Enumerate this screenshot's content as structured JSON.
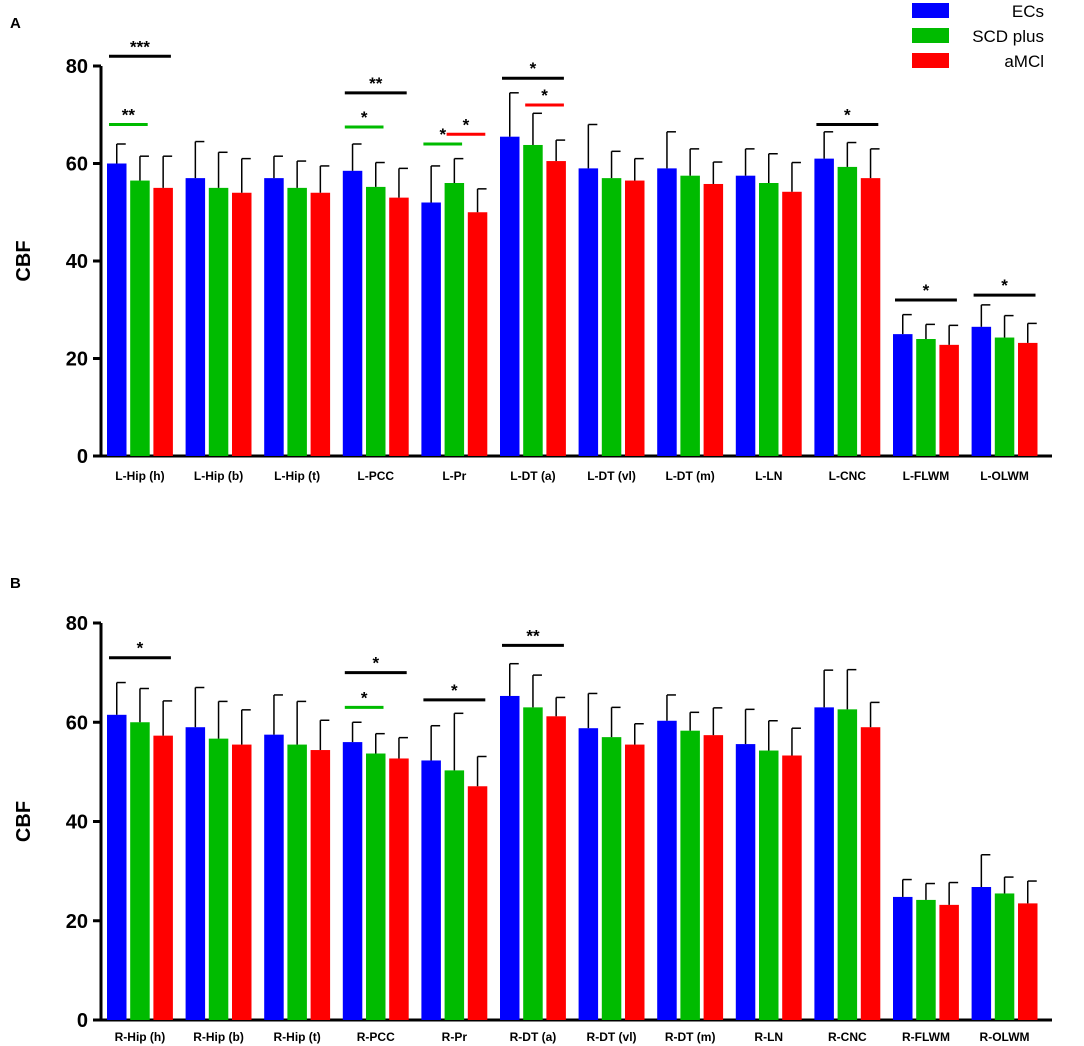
{
  "colors": {
    "ECs": "#0000ff",
    "SCD plus": "#00bb00",
    "aMCI": "#ff0000",
    "axis": "#000000"
  },
  "legend": {
    "items": [
      {
        "name": "ECs",
        "color": "#0000ff"
      },
      {
        "name": "SCD plus",
        "color": "#00bb00"
      },
      {
        "name": "aMCl",
        "color": "#ff0000"
      }
    ]
  },
  "chart_data": [
    {
      "panel": "A",
      "type": "bar",
      "ylabel": "CBF",
      "xlabel": "",
      "ylim": [
        0,
        80
      ],
      "yticks": [
        0,
        20,
        40,
        60,
        80
      ],
      "categories": [
        "L-Hip (h)",
        "L-Hip (b)",
        "L-Hip (t)",
        "L-PCC",
        "L-Pr",
        "L-DT (a)",
        "L-DT (vl)",
        "L-DT (m)",
        "L-LN",
        "L-CNC",
        "L-FLWM",
        "L-OLWM"
      ],
      "series": [
        {
          "name": "ECs",
          "values": [
            60,
            57,
            57,
            58.5,
            52,
            65.5,
            59,
            59,
            57.5,
            61,
            25,
            26.5
          ],
          "errors": [
            4,
            7.5,
            4.5,
            5.5,
            7.5,
            9,
            9,
            7.5,
            5.5,
            5.5,
            4,
            4.5
          ]
        },
        {
          "name": "SCD plus",
          "values": [
            56.5,
            55,
            55,
            55.2,
            56,
            63.8,
            57,
            57.5,
            56,
            59.3,
            24,
            24.3
          ],
          "errors": [
            5,
            7.3,
            5.5,
            5,
            5,
            6.5,
            5.5,
            5.5,
            6,
            5,
            3,
            4.5
          ]
        },
        {
          "name": "aMCl",
          "values": [
            55,
            54,
            54,
            53,
            50,
            60.5,
            56.5,
            55.8,
            54.2,
            57,
            22.8,
            23.2
          ],
          "errors": [
            6.5,
            7,
            5.5,
            6,
            4.8,
            4.3,
            4.5,
            4.5,
            6,
            6,
            4,
            4
          ]
        }
      ],
      "significance": [
        {
          "category": 0,
          "from": "ECs",
          "to": "aMCl",
          "label": "***",
          "level": 82,
          "color": "black"
        },
        {
          "category": 0,
          "from": "ECs",
          "to": "SCD plus",
          "label": "**",
          "level": 68,
          "color": "green"
        },
        {
          "category": 3,
          "from": "ECs",
          "to": "aMCl",
          "label": "**",
          "level": 74.5,
          "color": "black"
        },
        {
          "category": 3,
          "from": "ECs",
          "to": "SCD plus",
          "label": "*",
          "level": 67.5,
          "color": "green"
        },
        {
          "category": 4,
          "from": "ECs",
          "to": "SCD plus",
          "label": "*",
          "level": 64,
          "color": "green"
        },
        {
          "category": 4,
          "from": "SCD plus",
          "to": "aMCl",
          "label": "*",
          "level": 66,
          "color": "red"
        },
        {
          "category": 5,
          "from": "ECs",
          "to": "aMCl",
          "label": "*",
          "level": 77.5,
          "color": "black"
        },
        {
          "category": 5,
          "from": "SCD plus",
          "to": "aMCl",
          "label": "*",
          "level": 72,
          "color": "red"
        },
        {
          "category": 9,
          "from": "ECs",
          "to": "aMCl",
          "label": "*",
          "level": 68,
          "color": "black"
        },
        {
          "category": 10,
          "from": "ECs",
          "to": "aMCl",
          "label": "*",
          "level": 32,
          "color": "black"
        },
        {
          "category": 11,
          "from": "ECs",
          "to": "aMCl",
          "label": "*",
          "level": 33,
          "color": "black"
        }
      ]
    },
    {
      "panel": "B",
      "type": "bar",
      "ylabel": "CBF",
      "xlabel": "",
      "ylim": [
        0,
        80
      ],
      "yticks": [
        0,
        20,
        40,
        60,
        80
      ],
      "categories": [
        "R-Hip (h)",
        "R-Hip (b)",
        "R-Hip (t)",
        "R-PCC",
        "R-Pr",
        "R-DT (a)",
        "R-DT (vl)",
        "R-DT (m)",
        "R-LN",
        "R-CNC",
        "R-FLWM",
        "R-OLWM"
      ],
      "series": [
        {
          "name": "ECs",
          "values": [
            61.5,
            59,
            57.5,
            56,
            52.3,
            65.3,
            58.8,
            60.3,
            55.6,
            63,
            24.8,
            26.8
          ],
          "errors": [
            6.5,
            8,
            8,
            4,
            7,
            6.5,
            7,
            5.2,
            7,
            7.5,
            3.5,
            6.5
          ]
        },
        {
          "name": "SCD plus",
          "values": [
            60,
            56.7,
            55.5,
            53.7,
            50.3,
            63,
            57,
            58.3,
            54.3,
            62.6,
            24.2,
            25.5
          ],
          "errors": [
            6.8,
            7.5,
            8.7,
            4,
            11.5,
            6.5,
            6,
            3.7,
            6,
            8,
            3.3,
            3.3
          ]
        },
        {
          "name": "aMCl",
          "values": [
            57.3,
            55.5,
            54.4,
            52.7,
            47.1,
            61.2,
            55.5,
            57.4,
            53.3,
            59,
            23.2,
            23.5
          ],
          "errors": [
            7,
            7,
            6,
            4.2,
            6,
            3.8,
            4.2,
            5.5,
            5.5,
            5,
            4.5,
            4.5
          ]
        }
      ],
      "significance": [
        {
          "category": 0,
          "from": "ECs",
          "to": "aMCl",
          "label": "*",
          "level": 73,
          "color": "black"
        },
        {
          "category": 3,
          "from": "ECs",
          "to": "aMCl",
          "label": "*",
          "level": 70,
          "color": "black"
        },
        {
          "category": 3,
          "from": "ECs",
          "to": "SCD plus",
          "label": "*",
          "level": 63,
          "color": "green"
        },
        {
          "category": 4,
          "from": "ECs",
          "to": "aMCl",
          "label": "*",
          "level": 64.5,
          "color": "black"
        },
        {
          "category": 5,
          "from": "ECs",
          "to": "aMCl",
          "label": "**",
          "level": 75.5,
          "color": "black"
        }
      ]
    }
  ]
}
